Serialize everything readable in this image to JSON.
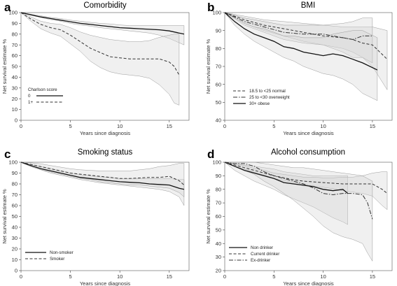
{
  "chart_data": [
    {
      "letter": "a",
      "type": "line",
      "title": "Comorbidity",
      "xlabel": "Years since diagnosis",
      "ylabel": "Net survival estimate %",
      "xlim": [
        0,
        17
      ],
      "ylim": [
        0,
        100
      ],
      "xticks": [
        0,
        5,
        10,
        15
      ],
      "yticks": [
        0,
        10,
        20,
        30,
        40,
        50,
        60,
        70,
        80,
        90,
        100
      ],
      "grid": false,
      "legend": {
        "title": "Charlson score",
        "position": "bottom-left"
      },
      "series": [
        {
          "name": "0",
          "style": "solid",
          "x": [
            0,
            1,
            2,
            3,
            4,
            5,
            6,
            7,
            8,
            9,
            10,
            11,
            12,
            13,
            14,
            15,
            16.5
          ],
          "y": [
            100,
            98,
            96,
            94.5,
            93,
            91.5,
            90,
            89,
            88,
            87,
            86,
            85.5,
            85,
            84.5,
            84,
            83,
            80
          ],
          "ci_lower": [
            100,
            97.5,
            95.5,
            93.5,
            92,
            90,
            88.5,
            87.5,
            86,
            85,
            84,
            83,
            82,
            81,
            79,
            76,
            70
          ],
          "ci_upper": [
            100,
            98.5,
            97,
            95.5,
            94.5,
            93,
            92,
            91,
            90,
            89.5,
            88.5,
            88,
            88,
            88,
            88,
            88,
            88
          ]
        },
        {
          "name": "1+",
          "style": "dashed",
          "x": [
            0,
            1,
            2,
            3,
            4,
            5,
            6,
            7,
            8,
            9,
            10,
            11,
            12,
            13,
            14,
            15,
            15.5,
            16
          ],
          "y": [
            100,
            94,
            89,
            86,
            84,
            79,
            73,
            67,
            63,
            59,
            58,
            57,
            57,
            57,
            57,
            54,
            50,
            42
          ],
          "ci_lower": [
            100,
            92,
            85,
            81,
            78,
            71,
            64,
            55,
            49,
            45,
            43,
            42,
            41,
            39,
            33,
            24,
            16,
            14
          ],
          "ci_upper": [
            100,
            96,
            92,
            90,
            89,
            86,
            82,
            79,
            77,
            75,
            74,
            73,
            73,
            74,
            77,
            79,
            80,
            80
          ]
        }
      ]
    },
    {
      "letter": "b",
      "type": "line",
      "title": "BMI",
      "xlabel": "Years since diagnosis",
      "ylabel": "Net survival estimate %",
      "xlim": [
        0,
        17
      ],
      "ylim": [
        40,
        100
      ],
      "xticks": [
        0,
        5,
        10,
        15
      ],
      "yticks": [
        40,
        50,
        60,
        70,
        80,
        90,
        100
      ],
      "grid": false,
      "legend": {
        "position": "bottom-left"
      },
      "series": [
        {
          "name": "18.5 to <25 normal",
          "style": "dashed",
          "x": [
            0,
            2,
            4,
            6,
            8,
            10,
            12,
            13,
            14,
            15,
            16.5
          ],
          "y": [
            100,
            96,
            93,
            91,
            89,
            87,
            86,
            85,
            83,
            82,
            74
          ],
          "ci_lower": [
            100,
            94,
            90,
            87,
            84,
            82,
            80,
            78,
            75,
            70,
            57
          ],
          "ci_upper": [
            100,
            98,
            96,
            95,
            94,
            93,
            92,
            92,
            92,
            92,
            90
          ]
        },
        {
          "name": "25 to <30 overweight",
          "style": "dashdot",
          "x": [
            0,
            2,
            4,
            6,
            8,
            10,
            12,
            13,
            14,
            15
          ],
          "y": [
            100,
            95,
            92,
            89,
            88,
            88,
            86,
            85,
            87,
            87
          ],
          "ci_lower": [
            100,
            93,
            89,
            85,
            83,
            82,
            78,
            75,
            75,
            72
          ],
          "ci_upper": [
            100,
            97,
            95,
            93,
            93,
            93,
            94,
            95,
            97,
            97
          ]
        },
        {
          "name": "30+ obese",
          "style": "solid",
          "x": [
            0,
            1,
            2,
            3,
            4,
            5,
            6,
            7,
            8,
            9,
            10,
            11,
            12,
            13,
            14,
            15.5
          ],
          "y": [
            100,
            95,
            91,
            88,
            86,
            84,
            81,
            80,
            78,
            77,
            76,
            77,
            76,
            74,
            72,
            68
          ],
          "ci_lower": [
            100,
            93,
            88,
            84,
            81,
            78,
            75,
            73,
            70,
            68,
            66,
            65,
            63,
            60,
            55,
            51
          ],
          "ci_upper": [
            100,
            97,
            94,
            92,
            91,
            89,
            87,
            87,
            86,
            86,
            86,
            88,
            89,
            90,
            90,
            86
          ]
        }
      ]
    },
    {
      "letter": "c",
      "type": "line",
      "title": "Smoking status",
      "xlabel": "Years since diagnosis",
      "ylabel": "Net survival estimate %",
      "xlim": [
        0,
        17
      ],
      "ylim": [
        0,
        100
      ],
      "xticks": [
        0,
        5,
        10,
        15
      ],
      "yticks": [
        0,
        10,
        20,
        30,
        40,
        50,
        60,
        70,
        80,
        90,
        100
      ],
      "grid": false,
      "legend": {
        "position": "bottom-left"
      },
      "series": [
        {
          "name": "Non-smoker",
          "style": "solid",
          "x": [
            0,
            1,
            2,
            3,
            4,
            5,
            6,
            7,
            8,
            9,
            10,
            11,
            12,
            13,
            14,
            15,
            16,
            16.5
          ],
          "y": [
            100,
            97,
            94,
            92,
            90,
            88,
            86,
            85,
            84,
            83,
            82,
            81.5,
            81,
            80,
            79.5,
            79,
            76,
            75
          ],
          "ci_lower": [
            100,
            96,
            93,
            90,
            88,
            86,
            84,
            82.5,
            81,
            80,
            79,
            78,
            77,
            76,
            75,
            73,
            68,
            60
          ],
          "ci_upper": [
            100,
            98,
            96,
            94,
            92,
            90,
            88.5,
            87.5,
            86.5,
            86,
            85,
            85,
            85,
            85,
            85,
            85,
            84,
            84
          ]
        },
        {
          "name": "Smoker",
          "style": "dashed",
          "x": [
            0,
            1,
            2,
            3,
            4,
            5,
            6,
            7,
            8,
            9,
            10,
            11,
            12,
            13,
            14,
            15,
            16,
            16.5
          ],
          "y": [
            100,
            98,
            96,
            94,
            92,
            90,
            89,
            88,
            87,
            86,
            85,
            85,
            85.5,
            86,
            86,
            87,
            83,
            79
          ],
          "ci_lower": [
            100,
            96,
            93,
            91,
            89,
            87,
            85,
            84,
            82,
            81,
            80,
            79,
            79,
            78,
            77,
            76,
            72,
            68
          ],
          "ci_upper": [
            100,
            99.5,
            98.5,
            97,
            95.5,
            94,
            93,
            92.5,
            92,
            92,
            92,
            92,
            93,
            94,
            96,
            97,
            99,
            99
          ]
        }
      ]
    },
    {
      "letter": "d",
      "type": "line",
      "title": "Alcohol consumption",
      "xlabel": "Years since diagnosis",
      "ylabel": "Net survival estimate %",
      "xlim": [
        0,
        17
      ],
      "ylim": [
        20,
        100
      ],
      "xticks": [
        0,
        5,
        10,
        15
      ],
      "yticks": [
        20,
        30,
        40,
        50,
        60,
        70,
        80,
        90,
        100
      ],
      "grid": false,
      "legend": {
        "position": "bottom-left"
      },
      "series": [
        {
          "name": "Non drinker",
          "style": "solid",
          "x": [
            0,
            1,
            2,
            3,
            4,
            5,
            6,
            7,
            8,
            9,
            10,
            11,
            12,
            12.5
          ],
          "y": [
            100,
            97,
            94,
            92,
            90,
            88,
            85,
            84,
            83,
            82,
            80,
            79,
            80,
            77
          ],
          "ci_lower": [
            100,
            94,
            90,
            86,
            83,
            80,
            76,
            73,
            70,
            67,
            63,
            59,
            56,
            54
          ],
          "ci_upper": [
            100,
            99,
            98,
            97,
            96,
            95,
            93,
            92,
            91,
            90,
            90,
            90,
            90,
            90
          ]
        },
        {
          "name": "Current drinker",
          "style": "dashed",
          "x": [
            0,
            1,
            2,
            3,
            4,
            5,
            6,
            7,
            8,
            9,
            10,
            11,
            12,
            13,
            14,
            15,
            16,
            16.5
          ],
          "y": [
            100,
            98,
            96,
            94,
            92,
            90,
            88.5,
            87,
            86,
            85.5,
            85,
            84.5,
            84,
            84,
            84,
            84,
            80,
            77
          ],
          "ci_lower": [
            100,
            97,
            95,
            92.5,
            90.5,
            88,
            86.5,
            85,
            83.5,
            82.5,
            81.5,
            80.5,
            79,
            78,
            77,
            75,
            68,
            65
          ],
          "ci_upper": [
            100,
            99,
            97.5,
            95.5,
            94,
            92,
            91,
            90,
            89,
            89,
            88.5,
            88.5,
            89,
            89,
            90,
            92,
            93,
            93
          ]
        },
        {
          "name": "Ex-drinker",
          "style": "dashdot",
          "x": [
            0,
            1,
            2,
            3,
            4,
            5,
            6,
            7,
            8,
            9,
            10,
            11,
            12,
            13,
            14,
            14.5,
            15
          ],
          "y": [
            100,
            99,
            99,
            97,
            93,
            90,
            88,
            86,
            84,
            81,
            77,
            76,
            77,
            77,
            76,
            70,
            58
          ],
          "ci_lower": [
            100,
            97,
            94,
            91,
            86,
            82,
            77,
            72,
            66,
            60,
            53,
            48,
            45,
            43,
            40,
            33,
            27
          ],
          "ci_upper": [
            100,
            100,
            100,
            100,
            99,
            98,
            97,
            96,
            96,
            95,
            94,
            93,
            92,
            91,
            90,
            88,
            86
          ]
        }
      ]
    }
  ]
}
